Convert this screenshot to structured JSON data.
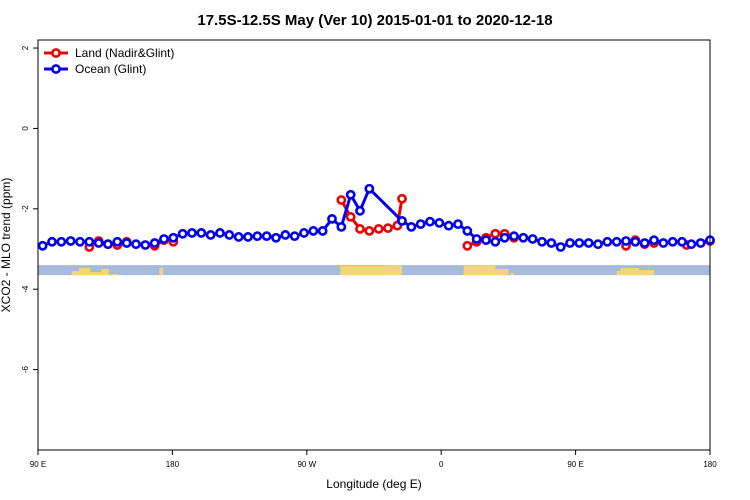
{
  "chart_data": {
    "type": "line",
    "title": "17.5S-12.5S May (Ver 10)   2015-01-01 to 2020-12-18",
    "xlabel": "Longitude (deg E)",
    "ylabel": "XCO2 - MLO trend (ppm)",
    "xlim": [
      90,
      450
    ],
    "ylim": [
      -8,
      2.2
    ],
    "x_ticks": [
      {
        "value": 90,
        "label": "90 E"
      },
      {
        "value": 162,
        "label": "180"
      },
      {
        "value": 234,
        "label": "90 W"
      },
      {
        "value": 306,
        "label": "0"
      },
      {
        "value": 378,
        "label": "90 E"
      },
      {
        "value": 450,
        "label": "180"
      }
    ],
    "y_ticks": [
      {
        "value": 2,
        "label": "2"
      },
      {
        "value": 0,
        "label": "0"
      },
      {
        "value": -2,
        "label": "-2"
      },
      {
        "value": -4,
        "label": "-4"
      },
      {
        "value": -6,
        "label": "-6"
      }
    ],
    "legend_position": "top-left",
    "grid": false,
    "series": [
      {
        "name": "Land (Nadir&Glint)",
        "color": "#ee0000",
        "segments": [
          [
            [
              117.5,
              -2.95
            ],
            [
              122.5,
              -2.8
            ],
            [
              127.5,
              -2.88
            ],
            [
              132.5,
              -2.9
            ],
            [
              137.5,
              -2.82
            ]
          ],
          [
            [
              152.5,
              -2.92
            ],
            [
              157.5,
              -2.78
            ],
            [
              162.5,
              -2.82
            ]
          ],
          [
            [
              252.5,
              -1.78
            ],
            [
              257.5,
              -2.2
            ],
            [
              262.5,
              -2.5
            ],
            [
              267.5,
              -2.55
            ],
            [
              272.5,
              -2.5
            ],
            [
              277.5,
              -2.48
            ],
            [
              282.5,
              -2.42
            ],
            [
              285,
              -1.75
            ]
          ],
          [
            [
              320,
              -2.92
            ],
            [
              325,
              -2.82
            ],
            [
              330,
              -2.72
            ],
            [
              335,
              -2.62
            ],
            [
              340,
              -2.62
            ],
            [
              345,
              -2.72
            ]
          ],
          [
            [
              405,
              -2.92
            ],
            [
              410,
              -2.78
            ],
            [
              415,
              -2.88
            ],
            [
              420,
              -2.85
            ]
          ],
          [
            [
              437.5,
              -2.9
            ],
            [
              450,
              -2.8
            ]
          ]
        ]
      },
      {
        "name": "Ocean (Glint)",
        "color": "#0000ee",
        "points": [
          [
            92.5,
            -2.92
          ],
          [
            97.5,
            -2.82
          ],
          [
            102.5,
            -2.82
          ],
          [
            107.5,
            -2.8
          ],
          [
            112.5,
            -2.82
          ],
          [
            117.5,
            -2.82
          ],
          [
            122.5,
            -2.85
          ],
          [
            127.5,
            -2.88
          ],
          [
            132.5,
            -2.82
          ],
          [
            137.5,
            -2.85
          ],
          [
            142.5,
            -2.88
          ],
          [
            147.5,
            -2.9
          ],
          [
            152.5,
            -2.85
          ],
          [
            157.5,
            -2.75
          ],
          [
            162.5,
            -2.72
          ],
          [
            167.5,
            -2.62
          ],
          [
            172.5,
            -2.6
          ],
          [
            177.5,
            -2.6
          ],
          [
            182.5,
            -2.65
          ],
          [
            187.5,
            -2.6
          ],
          [
            192.5,
            -2.65
          ],
          [
            197.5,
            -2.7
          ],
          [
            202.5,
            -2.7
          ],
          [
            207.5,
            -2.68
          ],
          [
            212.5,
            -2.68
          ],
          [
            217.5,
            -2.72
          ],
          [
            222.5,
            -2.65
          ],
          [
            227.5,
            -2.68
          ],
          [
            232.5,
            -2.6
          ],
          [
            237.5,
            -2.55
          ],
          [
            242.5,
            -2.55
          ],
          [
            247.5,
            -2.25
          ],
          [
            252.5,
            -2.45
          ],
          [
            257.5,
            -1.65
          ],
          [
            262.5,
            -2.05
          ],
          [
            267.5,
            -1.5
          ],
          [
            285,
            -2.3
          ],
          [
            290,
            -2.45
          ],
          [
            295,
            -2.38
          ],
          [
            300,
            -2.32
          ],
          [
            305,
            -2.35
          ],
          [
            310,
            -2.42
          ],
          [
            315,
            -2.38
          ],
          [
            320,
            -2.55
          ],
          [
            325,
            -2.75
          ],
          [
            330,
            -2.78
          ],
          [
            335,
            -2.82
          ],
          [
            340,
            -2.72
          ],
          [
            345,
            -2.68
          ],
          [
            350,
            -2.72
          ],
          [
            355,
            -2.75
          ],
          [
            360,
            -2.82
          ],
          [
            365,
            -2.85
          ],
          [
            370,
            -2.95
          ],
          [
            375,
            -2.85
          ],
          [
            380,
            -2.85
          ],
          [
            385,
            -2.85
          ],
          [
            390,
            -2.88
          ],
          [
            395,
            -2.82
          ],
          [
            400,
            -2.82
          ],
          [
            405,
            -2.8
          ],
          [
            410,
            -2.82
          ],
          [
            415,
            -2.85
          ],
          [
            420,
            -2.78
          ],
          [
            425,
            -2.85
          ],
          [
            430,
            -2.82
          ],
          [
            435,
            -2.82
          ],
          [
            440,
            -2.88
          ],
          [
            445,
            -2.85
          ],
          [
            450,
            -2.78
          ]
        ]
      }
    ],
    "land_mask": {
      "ocean_color": "#a7bbdc",
      "land_color": "#f5d57a",
      "band_y_range": [
        -3.65,
        -3.4
      ]
    }
  }
}
